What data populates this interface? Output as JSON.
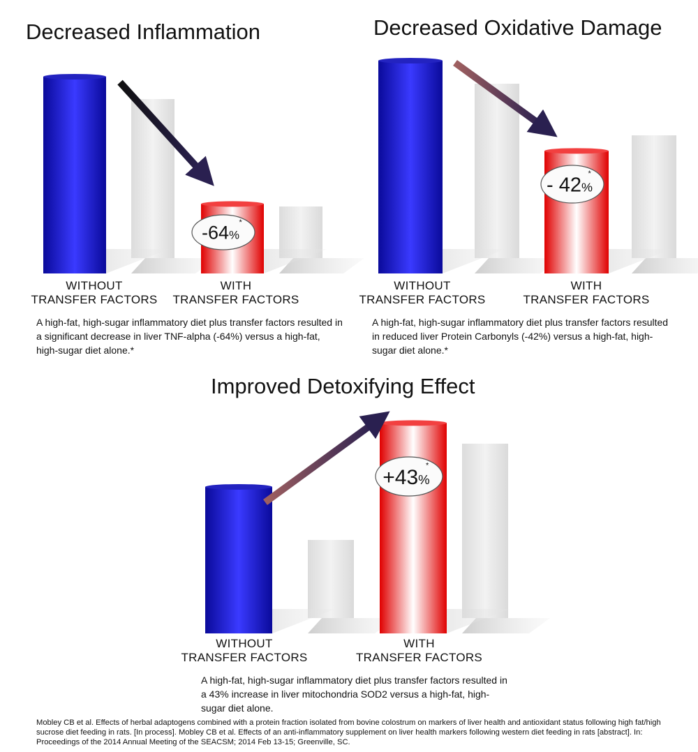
{
  "chart_data": [
    {
      "type": "bar",
      "title": "Decreased Inflammation",
      "categories": [
        "WITHOUT TRANSFER FACTORS",
        "WITH TRANSFER FACTORS"
      ],
      "values": [
        100,
        36
      ],
      "change_label": {
        "sign": "-",
        "number": "64",
        "unit": "%",
        "mark": "*"
      },
      "colors": {
        "without": "#1c1cc8",
        "with": "#ee1111"
      },
      "caption": "A high-fat, high-sugar inflammatory diet plus transfer factors resulted in a significant decrease in liver TNF-alpha (-64%) versus a high-fat, high-sugar diet alone.*"
    },
    {
      "type": "bar",
      "title": "Decreased Oxidative Damage",
      "categories": [
        "WITHOUT TRANSFER FACTORS",
        "WITH TRANSFER FACTORS"
      ],
      "values": [
        100,
        58
      ],
      "change_label": {
        "sign": "- ",
        "number": "42",
        "unit": "%",
        "mark": "*"
      },
      "colors": {
        "without": "#1c1cc8",
        "with": "#ee1111"
      },
      "caption": "A high-fat, high-sugar inflammatory diet plus transfer factors resulted in reduced liver Protein Carbonyls (-42%) versus a high-fat, high-sugar diet alone.*"
    },
    {
      "type": "bar",
      "title": "Improved Detoxifying Effect",
      "categories": [
        "WITHOUT TRANSFER FACTORS",
        "WITH TRANSFER FACTORS"
      ],
      "values": [
        100,
        143
      ],
      "change_label": {
        "sign": "+",
        "number": "43",
        "unit": "%",
        "mark": "*"
      },
      "colors": {
        "without": "#1c1cc8",
        "with": "#ee1111"
      },
      "caption": "A high-fat, high-sugar inflammatory diet plus transfer factors resulted in a 43% increase in liver mitochondria SOD2 versus a high-fat, high-sugar diet alone."
    }
  ],
  "citation": "Mobley CB et al. Effects of herbal adaptogens combined with a protein fraction isolated from bovine colostrum on markers of liver health and antioxidant status following high fat/high sucrose diet feeding in rats. [In process]. Mobley CB et al. Effects of an anti-inflammatory supplement on liver health markers following western diet feeding in rats [abstract]. In: Proceedings of the 2014 Annual Meeting of the SEACSM; 2014 Feb 13-15; Greenville, SC."
}
